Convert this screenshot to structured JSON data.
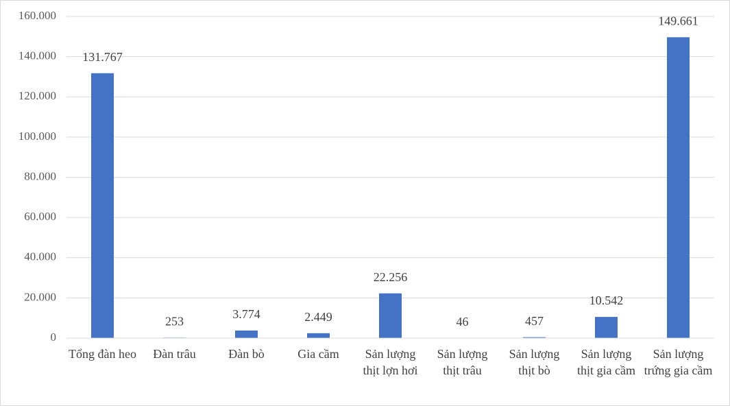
{
  "chart_data": {
    "type": "bar",
    "categories": [
      "Tổng đàn heo",
      "Đàn trâu",
      "Đàn bò",
      "Gia cầm",
      "Sản lượng thịt lợn hơi",
      "Sản lượng thịt trâu",
      "Sản lượng thịt bò",
      "Sản lượng thịt gia cầm",
      "Sản lượng trứng gia cầm"
    ],
    "values": [
      131767,
      253,
      3774,
      2449,
      22256,
      46,
      457,
      10542,
      149661
    ],
    "value_labels": [
      "131.767",
      "253",
      "3.774",
      "2.449",
      "22.256",
      "46",
      "457",
      "10.542",
      "149.661"
    ],
    "color": "#4472c4",
    "ylim": [
      0,
      160000
    ],
    "yticks": [
      0,
      {
        "value": 20000,
        "label": "20.000"
      },
      {
        "value": 40000,
        "label": "40.000"
      },
      {
        "value": 60000,
        "label": "60.000"
      },
      {
        "value": 80000,
        "label": "80.000"
      },
      {
        "value": 100000,
        "label": "100.000"
      },
      {
        "value": 120000,
        "label": "120.000"
      },
      {
        "value": 140000,
        "label": "140.000"
      },
      {
        "value": 160000,
        "label": "160.000"
      }
    ],
    "grid": true
  }
}
